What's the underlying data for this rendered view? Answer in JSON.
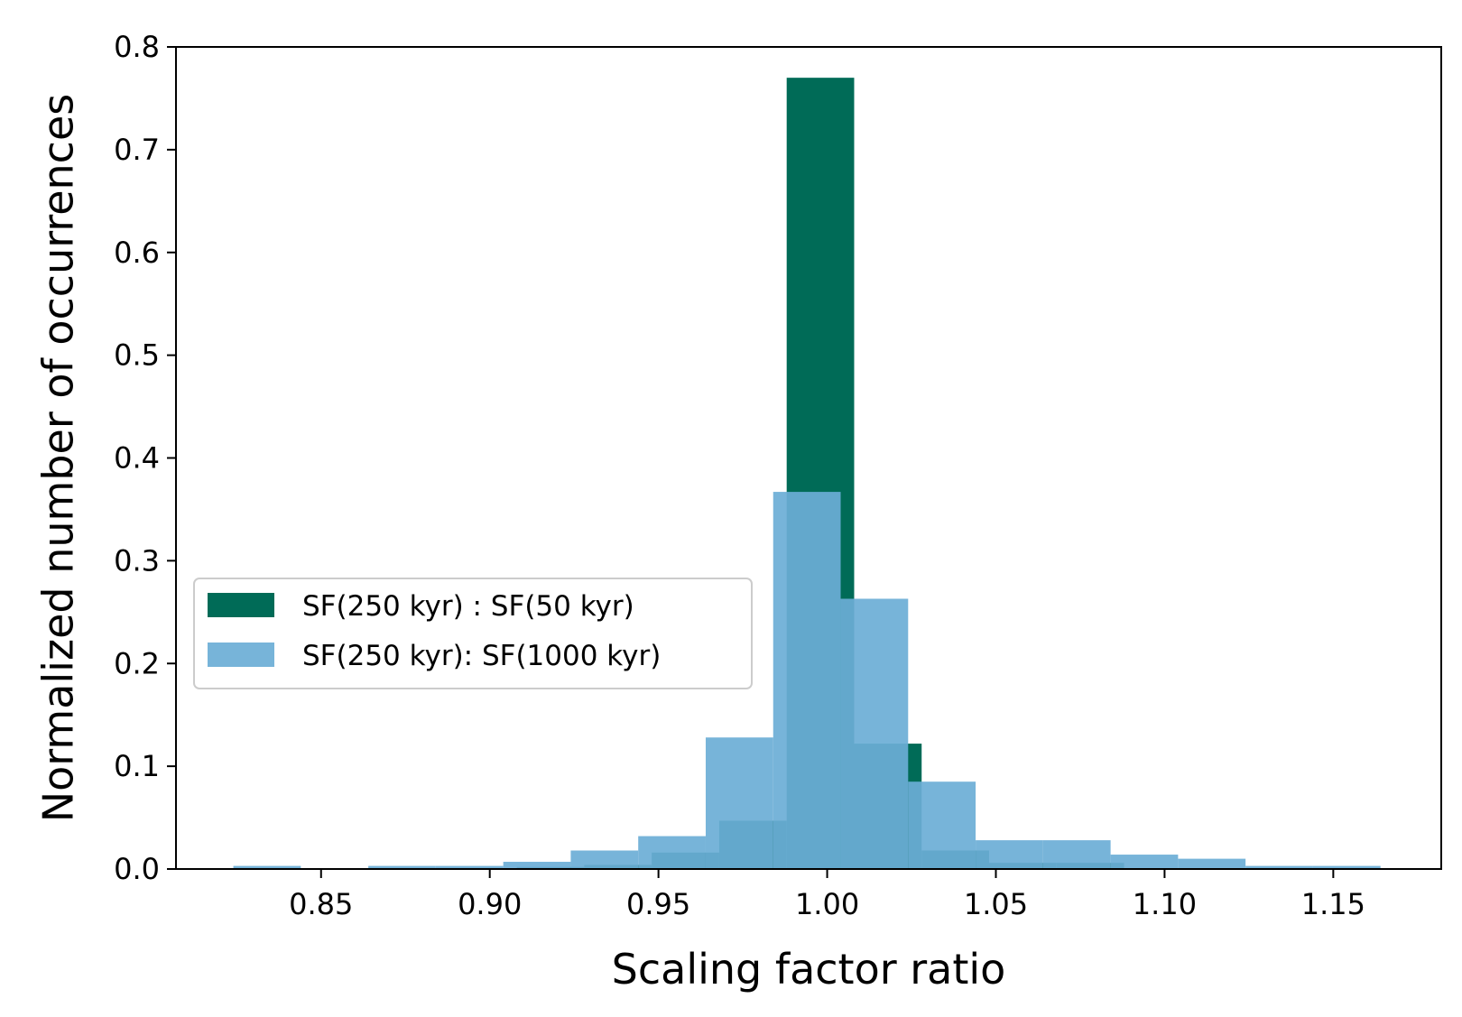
{
  "chart_data": {
    "type": "bar",
    "subtype": "histogram",
    "title": "",
    "xlabel": "Scaling factor ratio",
    "ylabel": "Normalized number of occurrences",
    "xlim": [
      0.807,
      1.182
    ],
    "ylim": [
      0.0,
      0.8
    ],
    "x_ticks": [
      0.85,
      0.9,
      0.95,
      1.0,
      1.05,
      1.1,
      1.15
    ],
    "x_tick_labels": [
      "0.85",
      "0.90",
      "0.95",
      "1.00",
      "1.05",
      "1.10",
      "1.15"
    ],
    "y_ticks": [
      0.0,
      0.1,
      0.2,
      0.3,
      0.4,
      0.5,
      0.6,
      0.7,
      0.8
    ],
    "y_tick_labels": [
      "0.0",
      "0.1",
      "0.2",
      "0.3",
      "0.4",
      "0.5",
      "0.6",
      "0.7",
      "0.8"
    ],
    "grid": false,
    "legend_position": "center-left",
    "series": [
      {
        "name": "SF(250 kyr) : SF(50 kyr)",
        "color": "#006b57",
        "opacity": 1.0,
        "bins": [
          {
            "x0": 0.908,
            "x1": 0.928,
            "value": 0.002
          },
          {
            "x0": 0.928,
            "x1": 0.948,
            "value": 0.004
          },
          {
            "x0": 0.948,
            "x1": 0.968,
            "value": 0.016
          },
          {
            "x0": 0.968,
            "x1": 0.988,
            "value": 0.047
          },
          {
            "x0": 0.988,
            "x1": 1.008,
            "value": 0.77
          },
          {
            "x0": 1.008,
            "x1": 1.028,
            "value": 0.122
          },
          {
            "x0": 1.028,
            "x1": 1.048,
            "value": 0.018
          },
          {
            "x0": 1.048,
            "x1": 1.068,
            "value": 0.006
          },
          {
            "x0": 1.068,
            "x1": 1.088,
            "value": 0.006
          }
        ]
      },
      {
        "name": "SF(250 kyr): SF(1000 kyr)",
        "color": "#6baed6",
        "opacity": 0.92,
        "bins": [
          {
            "x0": 0.824,
            "x1": 0.844,
            "value": 0.003
          },
          {
            "x0": 0.844,
            "x1": 0.864,
            "value": 0.0
          },
          {
            "x0": 0.864,
            "x1": 0.884,
            "value": 0.003
          },
          {
            "x0": 0.884,
            "x1": 0.904,
            "value": 0.003
          },
          {
            "x0": 0.904,
            "x1": 0.924,
            "value": 0.007
          },
          {
            "x0": 0.924,
            "x1": 0.944,
            "value": 0.018
          },
          {
            "x0": 0.944,
            "x1": 0.964,
            "value": 0.032
          },
          {
            "x0": 0.964,
            "x1": 0.984,
            "value": 0.128
          },
          {
            "x0": 0.984,
            "x1": 1.004,
            "value": 0.367
          },
          {
            "x0": 1.004,
            "x1": 1.024,
            "value": 0.263
          },
          {
            "x0": 1.024,
            "x1": 1.044,
            "value": 0.085
          },
          {
            "x0": 1.044,
            "x1": 1.064,
            "value": 0.028
          },
          {
            "x0": 1.064,
            "x1": 1.084,
            "value": 0.028
          },
          {
            "x0": 1.084,
            "x1": 1.104,
            "value": 0.014
          },
          {
            "x0": 1.104,
            "x1": 1.124,
            "value": 0.01
          },
          {
            "x0": 1.124,
            "x1": 1.144,
            "value": 0.003
          },
          {
            "x0": 1.144,
            "x1": 1.164,
            "value": 0.003
          }
        ]
      }
    ]
  }
}
